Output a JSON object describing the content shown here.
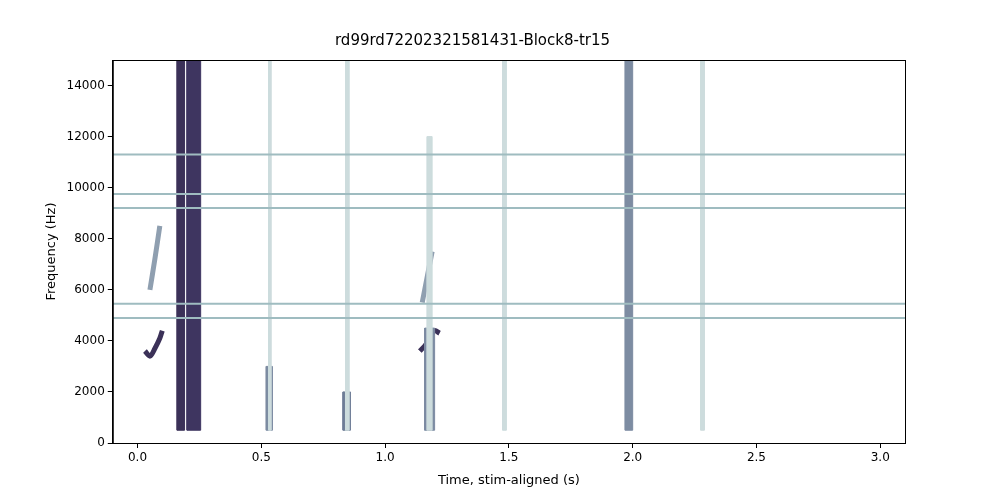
{
  "chart_data": {
    "type": "spectrogram",
    "title": "rd99rd72202321581431-Block8-tr15",
    "x_label": "Time, stim-aligned (s)",
    "y_label": "Frequency (Hz)",
    "xlim": [
      -0.1,
      3.1
    ],
    "xticks": [
      {
        "value": 0,
        "label": "0.0"
      },
      0.5,
      {
        "value": 1,
        "label": "1.0"
      },
      1.5,
      {
        "value": 2,
        "label": "2.0"
      },
      2.5,
      {
        "value": 3,
        "label": "3.0"
      }
    ],
    "ylim": [
      0,
      15000
    ],
    "yticks": [
      0,
      2000,
      4000,
      6000,
      8000,
      10000,
      12000,
      14000
    ],
    "grid": false,
    "events": [
      {
        "t": [
          0.53,
          0.54
        ],
        "f": [
          500,
          15000
        ],
        "color": "#cddcdd"
      },
      {
        "t": [
          0.84,
          0.855
        ],
        "f": [
          500,
          15000
        ],
        "color": "#cddcdd"
      },
      {
        "t": [
          1.17,
          1.19
        ],
        "f": [
          500,
          12000
        ],
        "color": "#cddcdd"
      },
      {
        "t": [
          1.475,
          1.49
        ],
        "f": [
          500,
          15000
        ],
        "color": "#cddcdd"
      },
      {
        "t": [
          2.275,
          2.29
        ],
        "f": [
          500,
          15000
        ],
        "color": "#cddcdd"
      },
      {
        "t": [
          0.16,
          0.19
        ],
        "f": [
          500,
          15000
        ],
        "color": "#3b3158"
      },
      {
        "t": [
          0.2,
          0.255
        ],
        "f": [
          500,
          15000
        ],
        "color": "#3e3560"
      },
      {
        "t": [
          0.52,
          0.545
        ],
        "f": [
          500,
          3000
        ],
        "color": "#7d8ca2"
      },
      {
        "t": [
          0.83,
          0.86
        ],
        "f": [
          500,
          2000
        ],
        "color": "#6e7d96"
      },
      {
        "t": [
          1.16,
          1.2
        ],
        "f": [
          500,
          4500
        ],
        "color": "#7d8ca2"
      },
      {
        "t": [
          1.97,
          2.0
        ],
        "f": [
          500,
          15000
        ],
        "color": "#7d8ca2"
      }
    ],
    "tonal_lines": {
      "freqs": [
        11300,
        9750,
        9200,
        5450,
        4900
      ],
      "color": "#9fbcc0"
    },
    "contours": [
      {
        "t": [
          0.03,
          0.05,
          0.07,
          0.09,
          0.1
        ],
        "f": [
          3600,
          3400,
          3700,
          4100,
          4400
        ],
        "color": "#3b3158"
      },
      {
        "t": [
          0.05,
          0.07,
          0.09
        ],
        "f": [
          6000,
          7200,
          8500
        ],
        "color": "#8f9fb0"
      },
      {
        "t": [
          1.14,
          1.16,
          1.18,
          1.2,
          1.22
        ],
        "f": [
          3600,
          3800,
          4100,
          4400,
          4300
        ],
        "color": "#3b3158"
      },
      {
        "t": [
          1.15,
          1.17,
          1.19
        ],
        "f": [
          5500,
          6500,
          7500
        ],
        "color": "#8f9fb0"
      }
    ]
  }
}
